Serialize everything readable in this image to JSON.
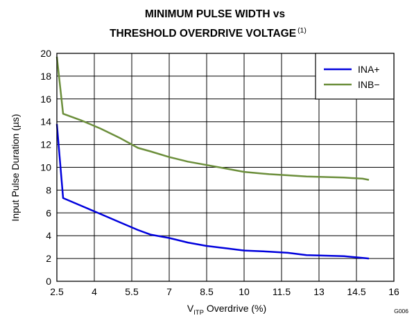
{
  "chart_data": {
    "type": "line",
    "title_line1": "MINIMUM PULSE WIDTH vs",
    "title_line2": "THRESHOLD OVERDRIVE VOLTAGE",
    "title_footnote": "(1)",
    "xlabel": {
      "main": "V",
      "subscript": "ITP",
      "rest": " Overdrive (%)"
    },
    "ylabel": "Input Pulse Duration (µs)",
    "xlim": [
      2.5,
      16
    ],
    "ylim": [
      0,
      20
    ],
    "x_ticks": [
      2.5,
      4,
      5.5,
      7,
      8.5,
      10,
      11.5,
      13,
      14.5,
      16
    ],
    "x_tick_labels": [
      "2.5",
      "4",
      "5.5",
      "7",
      "8.5",
      "10",
      "11.5",
      "13",
      "14.5",
      "16"
    ],
    "y_ticks": [
      0,
      2,
      4,
      6,
      8,
      10,
      12,
      14,
      16,
      18,
      20
    ],
    "y_tick_labels": [
      "0",
      "2",
      "4",
      "6",
      "8",
      "10",
      "12",
      "14",
      "16",
      "18",
      "20"
    ],
    "grid": true,
    "legend_position": "top-right",
    "figure_id": "G006",
    "series": [
      {
        "name": "INA+",
        "color": "#0000dd",
        "x": [
          2.5,
          2.75,
          3.5,
          4.25,
          5.0,
          5.75,
          6.25,
          7.0,
          7.75,
          8.5,
          9.25,
          10.0,
          11.0,
          11.75,
          12.5,
          13.25,
          14.0,
          14.75,
          15.0
        ],
        "y": [
          13.8,
          7.3,
          6.6,
          5.9,
          5.2,
          4.5,
          4.1,
          3.8,
          3.4,
          3.1,
          2.9,
          2.7,
          2.6,
          2.5,
          2.3,
          2.25,
          2.2,
          2.05,
          2.0
        ]
      },
      {
        "name": "INB−",
        "color": "#6b8e3a",
        "x": [
          2.5,
          2.75,
          3.5,
          4.25,
          5.0,
          5.75,
          6.25,
          7.0,
          7.75,
          8.5,
          9.25,
          10.0,
          11.0,
          11.75,
          12.5,
          13.25,
          14.0,
          14.75,
          15.0
        ],
        "y": [
          19.7,
          14.7,
          14.1,
          13.4,
          12.6,
          11.7,
          11.4,
          10.9,
          10.5,
          10.2,
          9.9,
          9.6,
          9.4,
          9.3,
          9.2,
          9.15,
          9.1,
          9.0,
          8.9
        ]
      }
    ]
  }
}
